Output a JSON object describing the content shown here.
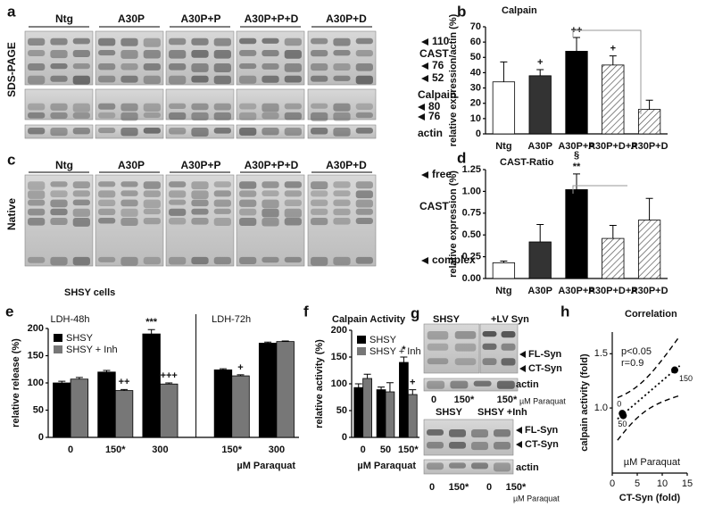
{
  "panel_a": {
    "label": "a",
    "method": "SDS-PAGE",
    "groups": [
      "Ntg",
      "A30P",
      "A30P+P",
      "A30P+P+D",
      "A30P+D"
    ],
    "cast_markers": [
      110,
      "CAST",
      76,
      52
    ],
    "calpain_markers": [
      "Calpain",
      80,
      76
    ],
    "loading": "actin"
  },
  "panel_c": {
    "label": "c",
    "method": "Native",
    "groups": [
      "Ntg",
      "A30P",
      "A30P+P",
      "A30P+P+D",
      "A30P+D"
    ],
    "bands": [
      "free",
      "CAST",
      "complex"
    ]
  },
  "panel_g": {
    "label": "g",
    "top_groups": [
      "SHSY",
      "+LV Syn"
    ],
    "top_bands": [
      "FL-Syn",
      "CT-Syn",
      "actin"
    ],
    "top_doses": [
      "0",
      "150*",
      "150*"
    ],
    "unit": "µM Paraquat",
    "bottom_groups": [
      "SHSY",
      "SHSY +Inh"
    ],
    "bottom_bands": [
      "FL-Syn",
      "CT-Syn",
      "actin"
    ],
    "bottom_doses": [
      "0",
      "150*",
      "0",
      "150*"
    ],
    "bottom_unit": "µM Paraquat"
  },
  "chart_data": [
    {
      "type": "bar",
      "label": "b",
      "title": "Calpain",
      "y_label": "relative expression/actin (%)",
      "categories": [
        "Ntg",
        "A30P",
        "A30P+P",
        "A30P+D+P",
        "A30P+D"
      ],
      "values": [
        34,
        38,
        54,
        45,
        16
      ],
      "errors": [
        13,
        4,
        9,
        6,
        6
      ],
      "colors": [
        "#ffffff",
        "#333333",
        "#000000",
        "#e8e8e8",
        "#cccccc"
      ],
      "hatch": [
        false,
        false,
        false,
        true,
        true
      ],
      "annotations": [
        {
          "text": "+",
          "series": 0,
          "index": 1
        },
        {
          "text": "++",
          "series": 0,
          "index": 2
        },
        {
          "text": "+",
          "series": 0,
          "index": 3
        }
      ],
      "ylim": [
        0,
        70
      ],
      "yticks": [
        0,
        10,
        20,
        30,
        40,
        50,
        60,
        70
      ]
    },
    {
      "type": "bar",
      "label": "d",
      "title": "CAST-Ratio",
      "y_label": "relative expression (%)",
      "categories": [
        "Ntg",
        "A30P",
        "A30P+P",
        "A30P+D+P",
        "A30P+D"
      ],
      "values": [
        0.18,
        0.42,
        1.02,
        0.46,
        0.67
      ],
      "errors": [
        0.02,
        0.2,
        0.18,
        0.15,
        0.25
      ],
      "colors": [
        "#ffffff",
        "#333333",
        "#000000",
        "#e8e8e8",
        "#cccccc"
      ],
      "hatch": [
        false,
        false,
        false,
        true,
        true
      ],
      "annotations": [
        {
          "text": "**",
          "series": 0,
          "index": 2
        },
        {
          "text": "§",
          "series": 0,
          "index": 2
        }
      ],
      "ylim": [
        0,
        1.25
      ],
      "yticks": [
        {
          "value": 0,
          "label": "0.00"
        },
        {
          "value": 0.25,
          "label": "0.25"
        },
        {
          "value": 0.5,
          "label": "0.50"
        },
        {
          "value": 0.75,
          "label": "0.75"
        },
        {
          "value": 1,
          "label": "1.00"
        },
        {
          "value": 1.25,
          "label": "1.25"
        }
      ]
    },
    {
      "type": "bar",
      "label": "e",
      "title": "SHSY cells",
      "y_label": "relative release (%)",
      "x_label": "µM Paraquat",
      "categories": [
        "0",
        "150*",
        "300",
        "150*",
        "300"
      ],
      "groups": [
        0,
        0,
        0,
        1,
        1
      ],
      "group_labels": [
        "LDH-48h",
        "LDH-72h"
      ],
      "series": [
        {
          "name": "SHSY",
          "color": "#000000",
          "values": [
            100,
            120,
            190,
            124,
            173
          ],
          "errors": [
            3,
            3,
            8,
            2,
            2
          ]
        },
        {
          "name": "SHSY + Inh",
          "color": "#777777",
          "values": [
            107,
            86,
            98,
            113,
            176
          ],
          "errors": [
            3,
            2,
            2,
            2,
            1
          ]
        }
      ],
      "annotations": [
        {
          "text": "++",
          "series": 1,
          "index": 1
        },
        {
          "text": "***",
          "series": 0,
          "index": 2
        },
        {
          "text": "+++",
          "series": 1,
          "index": 2
        },
        {
          "text": "+",
          "series": 1,
          "index": 3
        }
      ],
      "ylim": [
        0,
        200
      ],
      "yticks": [
        0,
        50,
        100,
        150,
        200
      ]
    },
    {
      "type": "bar",
      "label": "f",
      "title": "Calpain Activity",
      "y_label": "relative activity (%)",
      "x_label": "µM Paraquat",
      "categories": [
        "0",
        "50",
        "150*"
      ],
      "series": [
        {
          "name": "SHSY",
          "color": "#000000",
          "values": [
            93,
            89,
            140
          ],
          "errors": [
            7,
            5,
            10
          ]
        },
        {
          "name": "SHSY + Inh",
          "color": "#777777",
          "values": [
            110,
            85,
            80
          ],
          "errors": [
            8,
            17,
            9
          ]
        }
      ],
      "annotations": [
        {
          "text": "*",
          "series": 0,
          "index": 2
        },
        {
          "text": "+",
          "series": 1,
          "index": 2
        }
      ],
      "ylim": [
        0,
        200
      ],
      "yticks": [
        0,
        50,
        100,
        150,
        200
      ]
    },
    {
      "type": "scatter",
      "label": "h",
      "title": "Correlation",
      "y_label": "calpain activity (fold)",
      "x_label": "CT-Syn (fold)",
      "x": [
        2,
        2.2,
        12.5
      ],
      "values": [
        0.95,
        0.93,
        1.35
      ],
      "point_labels": [
        "0",
        "50",
        "150"
      ],
      "notes": [
        "p<0.05",
        "r=0.9"
      ],
      "unit_note": "µM Paraquat",
      "xlim": [
        0,
        15
      ],
      "xticks": [
        0,
        5,
        10,
        15
      ],
      "ylim": [
        0.4,
        1.7
      ],
      "yticks": [
        {
          "value": 1,
          "label": "1.0"
        },
        {
          "value": 1.5,
          "label": "1.5"
        }
      ]
    }
  ]
}
